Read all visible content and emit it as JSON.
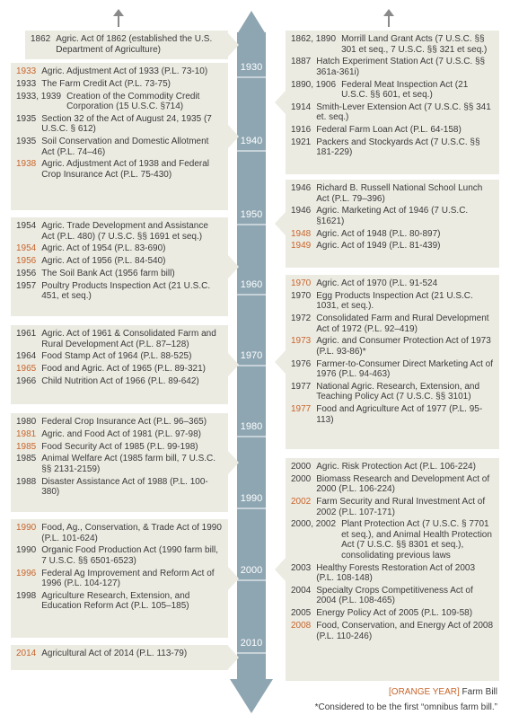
{
  "timeline": {
    "decades": [
      "1930",
      "1940",
      "1950",
      "1960",
      "1970",
      "1980",
      "1990",
      "2000",
      "2010"
    ]
  },
  "left_groups": [
    {
      "entries": [
        {
          "year": "1862",
          "text": "Agric. Act 0f 1862 (established the U.S. Department of Agriculture)",
          "farm_bill": false
        }
      ]
    },
    {
      "entries": [
        {
          "year": "1933",
          "text": "Agric. Adjustment Act of 1933 (P.L. 73-10)",
          "farm_bill": true
        },
        {
          "year": "1933",
          "text": "The Farm Credit Act (P.L. 73-75)",
          "farm_bill": false
        },
        {
          "year": "1933, 1939",
          "text": "Creation of the Commodity Credit Corporation (15 U.S.C. §714)",
          "farm_bill": false
        },
        {
          "year": "1935",
          "text": "Section 32 of the Act of August 24, 1935 (7 U.S.C. § 612)",
          "farm_bill": false
        },
        {
          "year": "1935",
          "text": "Soil Conservation and Domestic Allotment Act (P.L. 74–46)",
          "farm_bill": false
        },
        {
          "year": "1938",
          "text": "Agric. Adjustment Act of 1938 and Federal Crop Insurance Act (P.L. 75-430)",
          "farm_bill": true
        }
      ]
    },
    {
      "entries": [
        {
          "year": "1954",
          "text": "Agric. Trade Development and Assistance Act (P.L. 480) (7 U.S.C. §§ 1691 et seq.)",
          "farm_bill": false
        },
        {
          "year": "1954",
          "text": "Agric. Act of 1954 (P.L. 83-690)",
          "farm_bill": true
        },
        {
          "year": "1956",
          "text": "Agric. Act of 1956 (P.L. 84-540)",
          "farm_bill": true
        },
        {
          "year": "1956",
          "text": "The Soil Bank Act (1956 farm bill)",
          "farm_bill": false
        },
        {
          "year": "1957",
          "text": "Poultry Products Inspection Act (21 U.S.C. 451, et seq.)",
          "farm_bill": false
        }
      ]
    },
    {
      "entries": [
        {
          "year": "1961",
          "text": "Agric. Act of 1961 & Consolidated Farm and Rural Development Act (P.L. 87–128)",
          "farm_bill": false
        },
        {
          "year": "1964",
          "text": "Food Stamp Act of 1964 (P.L. 88-525)",
          "farm_bill": false
        },
        {
          "year": "1965",
          "text": "Food and Agric. Act of 1965 (P.L. 89-321)",
          "farm_bill": true
        },
        {
          "year": "1966",
          "text": "Child Nutrition Act of 1966 (P.L. 89-642)",
          "farm_bill": false
        }
      ]
    },
    {
      "entries": [
        {
          "year": "1980",
          "text": "Federal Crop Insurance Act (P.L. 96–365)",
          "farm_bill": false
        },
        {
          "year": "1981",
          "text": "Agric. and Food Act of 1981 (P.L. 97-98)",
          "farm_bill": true
        },
        {
          "year": "1985",
          "text": "Food Security Act of 1985 (P.L. 99-198)",
          "farm_bill": true
        },
        {
          "year": "1985",
          "text": "Animal Welfare Act (1985 farm bill, 7 U.S.C. §§ 2131-2159)",
          "farm_bill": false
        },
        {
          "year": "1988",
          "text": "Disaster Assistance Act of 1988 (P.L. 100-380)",
          "farm_bill": false
        }
      ]
    },
    {
      "entries": [
        {
          "year": "1990",
          "text": "Food, Ag., Conservation, & Trade Act of 1990 (P.L. 101-624)",
          "farm_bill": true
        },
        {
          "year": "1990",
          "text": "Organic Food Production Act (1990 farm bill, 7 U.S.C. §§ 6501-6523)",
          "farm_bill": false
        },
        {
          "year": "1996",
          "text": "Federal Ag Improvement and Reform Act of 1996 (P.L. 104-127)",
          "farm_bill": true
        },
        {
          "year": "1998",
          "text": "Agriculture Research, Extension, and Education Reform Act (P.L. 105–185)",
          "farm_bill": false
        }
      ]
    },
    {
      "entries": [
        {
          "year": "2014",
          "text": "Agricultural Act of 2014 (P.L. 113-79)",
          "farm_bill": true
        }
      ]
    }
  ],
  "right_groups": [
    {
      "entries": [
        {
          "year": "1862, 1890",
          "text": "Morrill Land Grant Acts (7 U.S.C. §§ 301 et seq., 7 U.S.C. §§ 321 et seq.)",
          "farm_bill": false
        },
        {
          "year": "1887",
          "text": "Hatch Experiment Station Act (7 U.S.C. §§ 361a-361i)",
          "farm_bill": false
        },
        {
          "year": "1890, 1906",
          "text": "Federal Meat Inspection Act (21 U.S.C. §§ 601, et seq.)",
          "farm_bill": false
        },
        {
          "year": "1914",
          "text": "Smith-Lever Extension Act (7 U.S.C. §§ 341 et. seq.)",
          "farm_bill": false
        },
        {
          "year": "1916",
          "text": "Federal Farm Loan Act (P.L. 64-158)",
          "farm_bill": false
        },
        {
          "year": "1921",
          "text": "Packers and Stockyards Act (7 U.S.C. §§ 181-229)",
          "farm_bill": false
        }
      ]
    },
    {
      "entries": [
        {
          "year": "1946",
          "text": "Richard B. Russell National School Lunch Act (P.L. 79–396)",
          "farm_bill": false
        },
        {
          "year": "1946",
          "text": "Agric. Marketing Act of 1946 (7 U.S.C. §1621)",
          "farm_bill": false
        },
        {
          "year": "1948",
          "text": "Agric. Act of 1948 (P.L. 80-897)",
          "farm_bill": true
        },
        {
          "year": "1949",
          "text": "Agric. Act of 1949 (P.L. 81-439)",
          "farm_bill": true
        }
      ]
    },
    {
      "entries": [
        {
          "year": "1970",
          "text": "Agric. Act of 1970 (P.L. 91-524",
          "farm_bill": true
        },
        {
          "year": "1970",
          "text": "Egg Products Inspection Act (21 U.S.C. 1031, et seq.).",
          "farm_bill": false
        },
        {
          "year": "1972",
          "text": "Consolidated Farm and Rural Development Act of 1972 (P.L. 92–419)",
          "farm_bill": false
        },
        {
          "year": "1973",
          "text": "Agric. and Consumer Protection Act of 1973 (P.L. 93-86)*",
          "farm_bill": true
        },
        {
          "year": "1976",
          "text": "Farmer-to-Consumer Direct Marketing Act of 1976 (P.L. 94-463)",
          "farm_bill": false
        },
        {
          "year": "1977",
          "text": "National Agric. Research, Extension, and Teaching Policy Act (7 U.S.C. §§ 3101)",
          "farm_bill": false
        },
        {
          "year": "1977",
          "text": "Food and Agriculture Act of 1977 (P.L. 95-113)",
          "farm_bill": true
        }
      ]
    },
    {
      "entries": [
        {
          "year": "2000",
          "text": "Agric. Risk Protection Act (P.L. 106-224)",
          "farm_bill": false
        },
        {
          "year": "2000",
          "text": "Biomass Research and Development Act of 2000 (P.L. 106-224)",
          "farm_bill": false
        },
        {
          "year": "2002",
          "text": "Farm Security and Rural Investment Act of 2002 (P.L. 107-171)",
          "farm_bill": true
        },
        {
          "year": "2000, 2002",
          "text": "Plant Protection Act (7 U.S.C. § 7701 et seq.), and Animal Health Protection Act (7 U.S.C. §§ 8301 et seq.), consolidating previous laws",
          "farm_bill": false
        },
        {
          "year": "2003",
          "text": "Healthy Forests Restoration Act of 2003 (P.L. 108-148)",
          "farm_bill": false
        },
        {
          "year": "2004",
          "text": "Specialty Crops Competitiveness Act of 2004 (P.L. 108-465)",
          "farm_bill": false
        },
        {
          "year": "2005",
          "text": "Energy Policy Act of 2005 (P.L. 109-58)",
          "farm_bill": false
        },
        {
          "year": "2008",
          "text": "Food, Conservation, and Energy Act of 2008 (P.L. 110-246)",
          "farm_bill": true
        }
      ]
    }
  ],
  "legend": {
    "key_label": "[ORANGE YEAR]",
    "key_meaning": "Farm Bill",
    "footnote": "*Considered to be the first “omnibus farm bill.”"
  },
  "colors": {
    "orange": "#c8652b",
    "box": "#ecebe2",
    "timeline": "#8ea6b2",
    "text": "#3a3a3a"
  }
}
